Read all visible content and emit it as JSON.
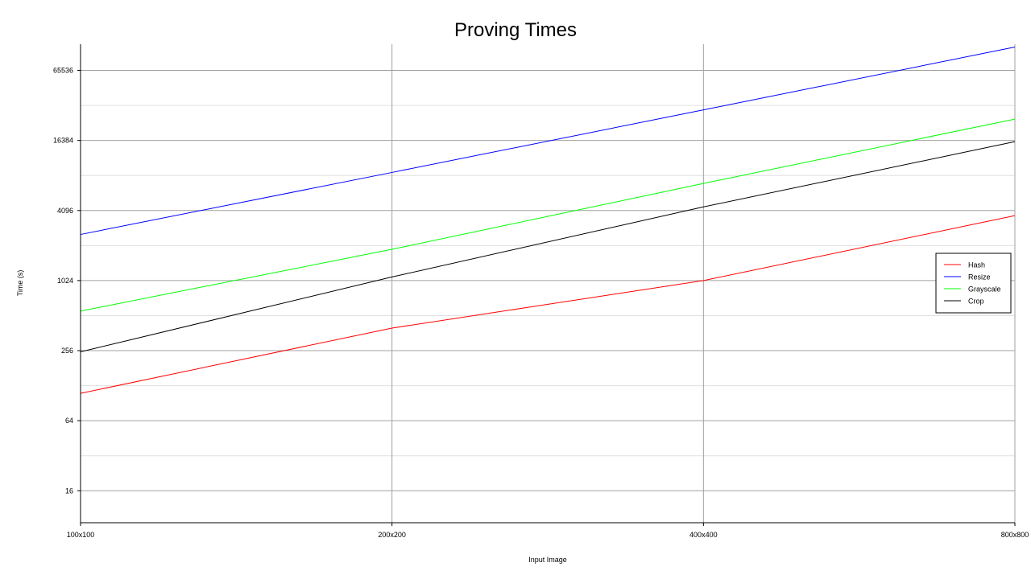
{
  "chart_data": {
    "type": "line",
    "title": "Proving Times",
    "xlabel": "Input Image",
    "ylabel": "Time (s)",
    "categories": [
      "100x100",
      "200x200",
      "400x400",
      "800x800"
    ],
    "y_scale": "log2",
    "yticks": [
      16,
      64,
      256,
      1024,
      4096,
      16384,
      65536
    ],
    "ylim": [
      8.5,
      110000
    ],
    "grid": true,
    "legend_position": "right",
    "series": [
      {
        "name": "Hash",
        "color": "#ff0000",
        "values": [
          110,
          400,
          1024,
          3700
        ]
      },
      {
        "name": "Resize",
        "color": "#0000ff",
        "values": [
          2550,
          8700,
          30000,
          104000
        ]
      },
      {
        "name": "Grayscale",
        "color": "#00ff00",
        "values": [
          560,
          1900,
          7000,
          25000
        ]
      },
      {
        "name": "Crop",
        "color": "#000000",
        "values": [
          250,
          1100,
          4400,
          16000
        ]
      }
    ]
  }
}
